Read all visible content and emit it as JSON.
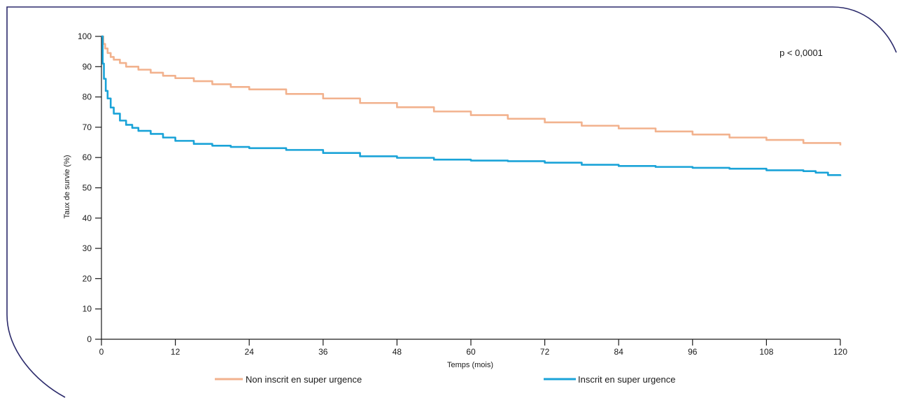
{
  "chart_data": {
    "type": "line",
    "title": "",
    "xlabel": "Temps (mois)",
    "ylabel": "Taux de survie (%)",
    "xlim": [
      0,
      120
    ],
    "ylim": [
      0,
      100
    ],
    "x_ticks": [
      0,
      12,
      24,
      36,
      48,
      60,
      72,
      84,
      96,
      108,
      120
    ],
    "y_ticks": [
      0,
      10,
      20,
      30,
      40,
      50,
      60,
      70,
      80,
      90,
      100
    ],
    "grid": false,
    "legend_position": "bottom",
    "annotation": "p < 0,0001",
    "series": [
      {
        "name": "Non inscrit en super urgence",
        "color": "#f2b28e",
        "x": [
          0,
          0.3,
          0.6,
          1,
          1.5,
          2,
          3,
          4,
          6,
          8,
          10,
          12,
          15,
          18,
          21,
          24,
          30,
          36,
          42,
          48,
          54,
          60,
          66,
          72,
          78,
          84,
          90,
          96,
          102,
          108,
          114,
          120
        ],
        "y": [
          100,
          97.5,
          96,
          94.5,
          93.2,
          92.3,
          91.2,
          90,
          89,
          88,
          87,
          86.2,
          85.2,
          84.2,
          83.3,
          82.5,
          81,
          79.5,
          78,
          76.6,
          75.2,
          74,
          72.8,
          71.6,
          70.5,
          69.6,
          68.6,
          67.6,
          66.6,
          65.8,
          64.8,
          64
        ]
      },
      {
        "name": "Inscrit en super urgence",
        "color": "#1aa3d8",
        "x": [
          0,
          0.2,
          0.4,
          0.7,
          1,
          1.5,
          2,
          3,
          4,
          5,
          6,
          8,
          10,
          12,
          15,
          18,
          21,
          24,
          30,
          36,
          42,
          48,
          54,
          60,
          66,
          72,
          78,
          84,
          90,
          96,
          102,
          108,
          114,
          116,
          118,
          120
        ],
        "y": [
          100,
          91,
          86,
          82,
          79.5,
          76.5,
          74.5,
          72.2,
          70.8,
          69.8,
          68.8,
          67.8,
          66.6,
          65.5,
          64.5,
          63.9,
          63.5,
          63.1,
          62.5,
          61.5,
          60.4,
          59.9,
          59.3,
          59,
          58.8,
          58.3,
          57.6,
          57.2,
          56.9,
          56.6,
          56.3,
          55.8,
          55.5,
          55,
          54.2,
          53.9
        ]
      }
    ]
  }
}
